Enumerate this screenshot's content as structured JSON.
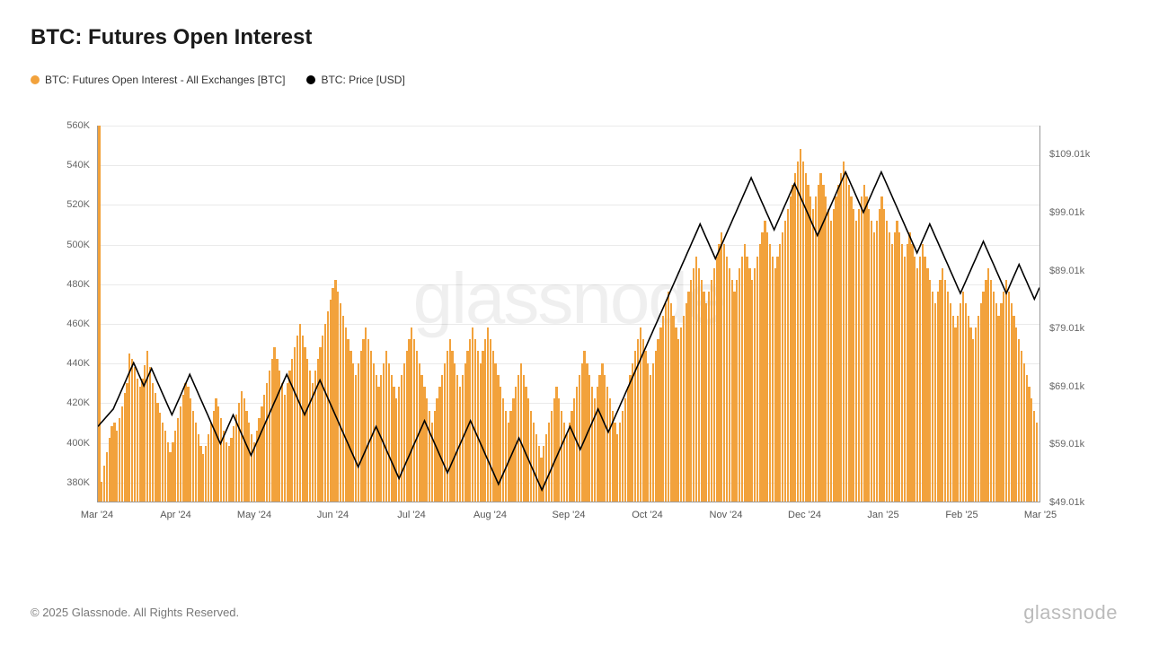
{
  "title": "BTC: Futures Open Interest",
  "legend": [
    {
      "color": "#f2a23c",
      "label": "BTC: Futures Open Interest - All Exchanges [BTC]"
    },
    {
      "color": "#000000",
      "label": "BTC: Price [USD]"
    }
  ],
  "watermark": "glassnode",
  "footer": "© 2025 Glassnode. All Rights Reserved.",
  "brand": "glassnode",
  "chart": {
    "type": "bar+line",
    "bar_color": "#f2a23c",
    "line_color": "#000000",
    "line_width": 1.6,
    "background_color": "#ffffff",
    "grid_color": "#eaeaea",
    "axis_color": "#999999",
    "left_axis": {
      "label_color": "#666666",
      "fontsize": 11,
      "min": 370,
      "max": 560,
      "ticks": [
        380,
        400,
        420,
        440,
        460,
        480,
        500,
        520,
        540,
        560
      ],
      "tick_labels": [
        "380K",
        "400K",
        "420K",
        "440K",
        "460K",
        "480K",
        "500K",
        "520K",
        "540K",
        "560K"
      ]
    },
    "right_axis": {
      "label_color": "#666666",
      "fontsize": 11,
      "min": 49.01,
      "max": 114.01,
      "ticks": [
        49.01,
        59.01,
        69.01,
        79.01,
        89.01,
        99.01,
        109.01
      ],
      "tick_labels": [
        "$49.01k",
        "$59.01k",
        "$69.01k",
        "$79.01k",
        "$89.01k",
        "$99.01k",
        "$109.01k"
      ]
    },
    "x_axis": {
      "fontsize": 11,
      "labels": [
        "Mar '24",
        "Apr '24",
        "May '24",
        "Jun '24",
        "Jul '24",
        "Aug '24",
        "Sep '24",
        "Oct '24",
        "Nov '24",
        "Dec '24",
        "Jan '25",
        "Feb '25",
        "Mar '25"
      ]
    },
    "open_interest": [
      560,
      380,
      388,
      395,
      402,
      408,
      410,
      406,
      412,
      418,
      425,
      430,
      445,
      442,
      438,
      432,
      428,
      432,
      439,
      446,
      438,
      430,
      425,
      420,
      415,
      410,
      406,
      400,
      395,
      400,
      406,
      412,
      418,
      424,
      430,
      428,
      422,
      416,
      410,
      404,
      398,
      394,
      398,
      404,
      410,
      416,
      422,
      418,
      412,
      406,
      400,
      398,
      402,
      408,
      414,
      420,
      426,
      422,
      416,
      410,
      404,
      400,
      406,
      412,
      418,
      424,
      430,
      436,
      442,
      448,
      442,
      436,
      430,
      424,
      430,
      436,
      442,
      448,
      454,
      460,
      454,
      448,
      442,
      436,
      430,
      436,
      442,
      448,
      454,
      460,
      466,
      472,
      478,
      482,
      476,
      470,
      464,
      458,
      452,
      446,
      440,
      434,
      440,
      446,
      452,
      458,
      452,
      446,
      440,
      434,
      428,
      434,
      440,
      446,
      440,
      434,
      428,
      422,
      428,
      434,
      440,
      446,
      452,
      458,
      452,
      446,
      440,
      434,
      428,
      422,
      416,
      410,
      416,
      422,
      428,
      434,
      440,
      446,
      452,
      446,
      440,
      434,
      428,
      434,
      440,
      446,
      452,
      458,
      452,
      446,
      440,
      446,
      452,
      458,
      452,
      446,
      440,
      434,
      428,
      422,
      416,
      410,
      416,
      422,
      428,
      434,
      440,
      434,
      428,
      422,
      416,
      410,
      404,
      398,
      392,
      398,
      404,
      410,
      416,
      422,
      428,
      422,
      416,
      410,
      404,
      410,
      416,
      422,
      428,
      434,
      440,
      446,
      440,
      434,
      428,
      422,
      428,
      434,
      440,
      434,
      428,
      422,
      416,
      410,
      404,
      410,
      416,
      422,
      428,
      434,
      440,
      446,
      452,
      458,
      452,
      446,
      440,
      434,
      440,
      446,
      452,
      458,
      464,
      470,
      476,
      470,
      464,
      458,
      452,
      458,
      464,
      470,
      476,
      482,
      488,
      494,
      488,
      482,
      476,
      470,
      476,
      482,
      488,
      494,
      500,
      506,
      500,
      494,
      488,
      482,
      476,
      482,
      488,
      494,
      500,
      494,
      488,
      482,
      488,
      494,
      500,
      506,
      512,
      506,
      500,
      494,
      488,
      494,
      500,
      506,
      512,
      518,
      524,
      530,
      536,
      542,
      548,
      542,
      536,
      530,
      524,
      518,
      524,
      530,
      536,
      530,
      524,
      518,
      512,
      518,
      524,
      530,
      536,
      542,
      536,
      530,
      524,
      518,
      512,
      518,
      524,
      530,
      524,
      518,
      512,
      506,
      512,
      518,
      524,
      518,
      512,
      506,
      500,
      506,
      512,
      506,
      500,
      494,
      500,
      506,
      500,
      494,
      488,
      494,
      500,
      494,
      488,
      482,
      476,
      470,
      476,
      482,
      488,
      482,
      476,
      470,
      464,
      458,
      464,
      470,
      476,
      470,
      464,
      458,
      452,
      458,
      464,
      470,
      476,
      482,
      488,
      482,
      476,
      470,
      464,
      470,
      476,
      482,
      476,
      470,
      464,
      458,
      452,
      446,
      440,
      434,
      428,
      422,
      416,
      410
    ],
    "price": [
      62,
      62.5,
      63,
      63.5,
      64,
      64.5,
      65,
      66,
      67,
      68,
      69,
      70,
      71,
      72,
      73,
      72,
      71,
      70,
      69,
      70,
      71,
      72,
      71,
      70,
      69,
      68,
      67,
      66,
      65,
      64,
      65,
      66,
      67,
      68,
      69,
      70,
      71,
      70,
      69,
      68,
      67,
      66,
      65,
      64,
      63,
      62,
      61,
      60,
      59,
      60,
      61,
      62,
      63,
      64,
      63,
      62,
      61,
      60,
      59,
      58,
      57,
      58,
      59,
      60,
      61,
      62,
      63,
      64,
      65,
      66,
      67,
      68,
      69,
      70,
      71,
      70,
      69,
      68,
      67,
      66,
      65,
      64,
      65,
      66,
      67,
      68,
      69,
      70,
      69,
      68,
      67,
      66,
      65,
      64,
      63,
      62,
      61,
      60,
      59,
      58,
      57,
      56,
      55,
      56,
      57,
      58,
      59,
      60,
      61,
      62,
      61,
      60,
      59,
      58,
      57,
      56,
      55,
      54,
      53,
      54,
      55,
      56,
      57,
      58,
      59,
      60,
      61,
      62,
      63,
      62,
      61,
      60,
      59,
      58,
      57,
      56,
      55,
      54,
      55,
      56,
      57,
      58,
      59,
      60,
      61,
      62,
      63,
      62,
      61,
      60,
      59,
      58,
      57,
      56,
      55,
      54,
      53,
      52,
      53,
      54,
      55,
      56,
      57,
      58,
      59,
      60,
      59,
      58,
      57,
      56,
      55,
      54,
      53,
      52,
      51,
      52,
      53,
      54,
      55,
      56,
      57,
      58,
      59,
      60,
      61,
      62,
      61,
      60,
      59,
      58,
      59,
      60,
      61,
      62,
      63,
      64,
      65,
      64,
      63,
      62,
      61,
      62,
      63,
      64,
      65,
      66,
      67,
      68,
      69,
      70,
      71,
      72,
      73,
      74,
      75,
      76,
      77,
      78,
      79,
      80,
      81,
      82,
      83,
      84,
      85,
      86,
      87,
      88,
      89,
      90,
      91,
      92,
      93,
      94,
      95,
      96,
      97,
      96,
      95,
      94,
      93,
      92,
      91,
      92,
      93,
      94,
      95,
      96,
      97,
      98,
      99,
      100,
      101,
      102,
      103,
      104,
      105,
      104,
      103,
      102,
      101,
      100,
      99,
      98,
      97,
      96,
      97,
      98,
      99,
      100,
      101,
      102,
      103,
      104,
      103,
      102,
      101,
      100,
      99,
      98,
      97,
      96,
      95,
      96,
      97,
      98,
      99,
      100,
      101,
      102,
      103,
      104,
      105,
      106,
      105,
      104,
      103,
      102,
      101,
      100,
      99,
      100,
      101,
      102,
      103,
      104,
      105,
      106,
      105,
      104,
      103,
      102,
      101,
      100,
      99,
      98,
      97,
      96,
      95,
      94,
      93,
      92,
      93,
      94,
      95,
      96,
      97,
      96,
      95,
      94,
      93,
      92,
      91,
      90,
      89,
      88,
      87,
      86,
      85,
      86,
      87,
      88,
      89,
      90,
      91,
      92,
      93,
      94,
      93,
      92,
      91,
      90,
      89,
      88,
      87,
      86,
      85,
      86,
      87,
      88,
      89,
      90,
      89,
      88,
      87,
      86,
      85,
      84,
      85,
      86
    ]
  }
}
